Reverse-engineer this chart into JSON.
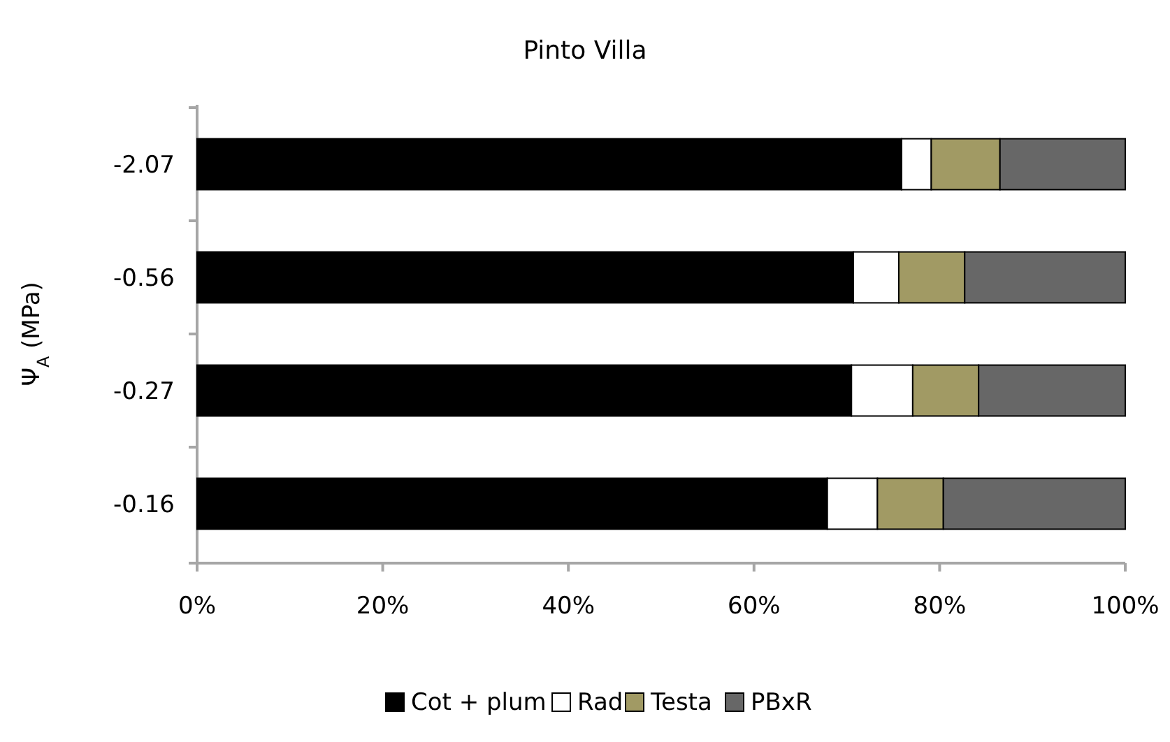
{
  "chart_data": {
    "type": "bar",
    "orientation": "horizontal",
    "stacked": true,
    "title": "Pinto Villa",
    "ylabel": "Ψ$_{A}$ (MPa)",
    "categories": [
      "-2.07",
      "-0.56",
      "-0.27",
      "-0.16"
    ],
    "series": [
      {
        "name": "Cot + plum",
        "color": "#000000",
        "values": [
          75.9,
          70.7,
          70.5,
          67.9
        ]
      },
      {
        "name": "Rad",
        "color": "#ffffff",
        "values": [
          3.2,
          4.9,
          6.6,
          5.4
        ]
      },
      {
        "name": "Testa",
        "color": "#a19a64",
        "values": [
          7.4,
          7.1,
          7.1,
          7.1
        ]
      },
      {
        "name": "PBxR",
        "color": "#676767",
        "values": [
          13.5,
          17.3,
          15.8,
          19.6
        ]
      }
    ],
    "xlim": [
      0,
      100
    ],
    "xticks": [
      {
        "value": 0,
        "label": "0%"
      },
      {
        "value": 20,
        "label": "20%"
      },
      {
        "value": 40,
        "label": "40%"
      },
      {
        "value": 60,
        "label": "60%"
      },
      {
        "value": 80,
        "label": "80%"
      },
      {
        "value": 100,
        "label": "100%"
      }
    ],
    "legend": "bottom",
    "grid": false
  }
}
